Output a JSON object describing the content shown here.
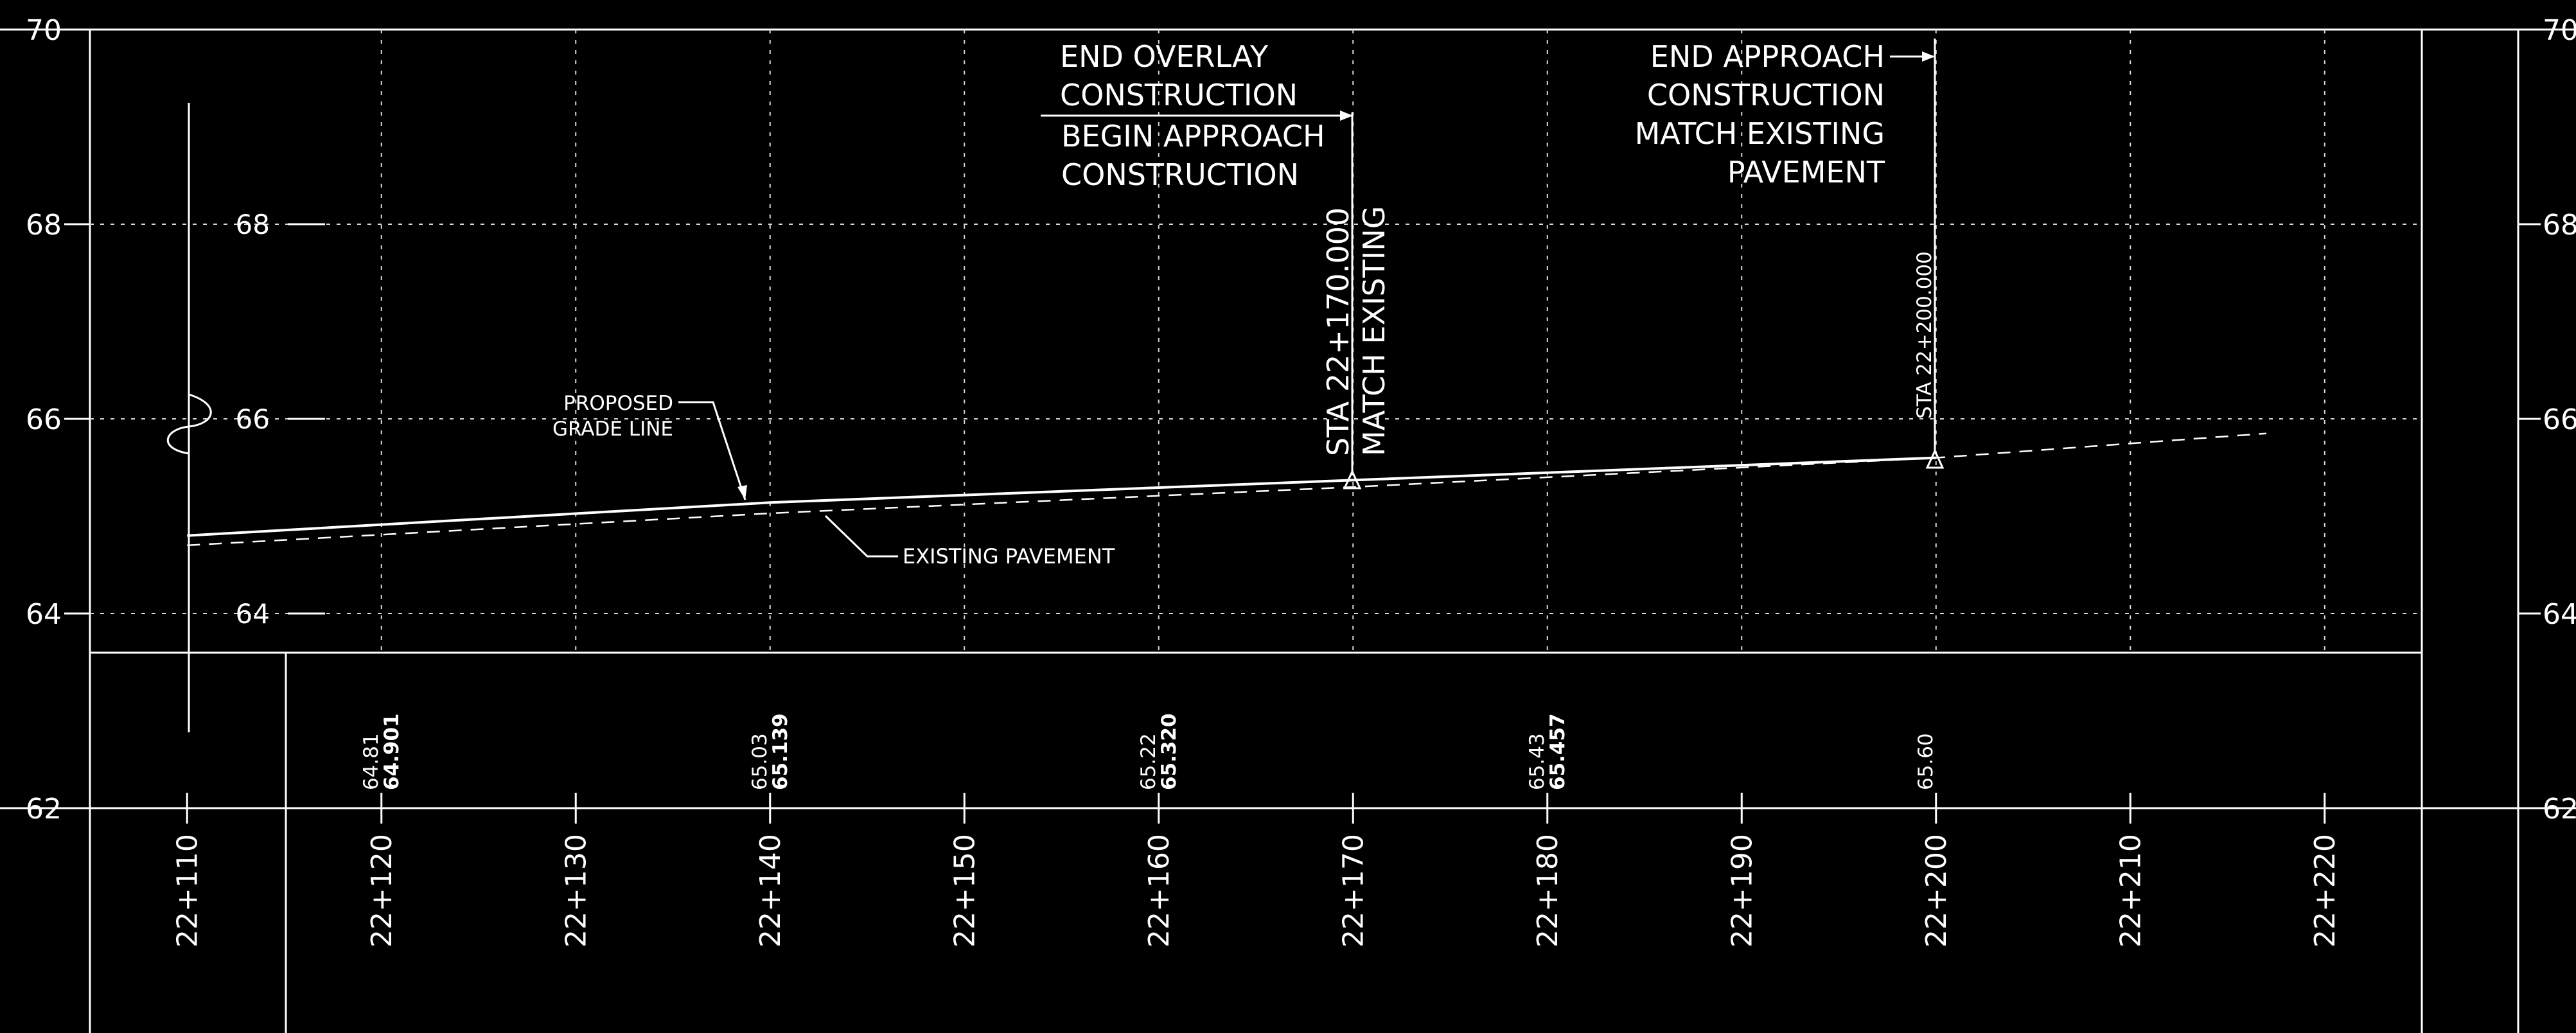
{
  "colors": {
    "background": "#000000",
    "linework": "#ffffff",
    "grid": "#d9d9d9"
  },
  "elevation_scale": {
    "min": 62,
    "max": 70,
    "left_labels": [
      "70",
      "68",
      "66",
      "64",
      "62"
    ],
    "right_labels": [
      "70",
      "68",
      "66",
      "64",
      "62"
    ],
    "inner_labels": [
      "68",
      "66",
      "64"
    ]
  },
  "stations": {
    "min": 22105,
    "max": 22225,
    "ticks": [
      22110,
      22120,
      22130,
      22140,
      22150,
      22160,
      22170,
      22180,
      22190,
      22200,
      22210,
      22220
    ],
    "labels": [
      "22+110",
      "22+120",
      "22+130",
      "22+140",
      "22+150",
      "22+160",
      "22+170",
      "22+180",
      "22+190",
      "22+200",
      "22+210",
      "22+220"
    ]
  },
  "profiles": {
    "proposed": {
      "points": [
        [
          22110,
          64.8
        ],
        [
          22140,
          65.14
        ],
        [
          22170,
          65.37
        ],
        [
          22200,
          65.6
        ]
      ]
    },
    "existing": {
      "points": [
        [
          22110,
          64.7
        ],
        [
          22140,
          65.03
        ],
        [
          22170,
          65.3
        ],
        [
          22200,
          65.6
        ],
        [
          22217,
          65.85
        ]
      ]
    }
  },
  "elevation_values": [
    {
      "station": 22120,
      "existing": "64.81",
      "proposed": "64.901"
    },
    {
      "station": 22140,
      "existing": "65.03",
      "proposed": "65.139"
    },
    {
      "station": 22160,
      "existing": "65.22",
      "proposed": "65.320"
    },
    {
      "station": 22180,
      "existing": "65.43",
      "proposed": "65.457"
    },
    {
      "station": 22200,
      "existing": "65.60",
      "proposed": ""
    }
  ],
  "annotations": {
    "proposed_grade_line": [
      "PROPOSED",
      "GRADE LINE"
    ],
    "existing_pavement": "EXISTING PAVEMENT",
    "end_overlay": [
      "END OVERLAY",
      "CONSTRUCTION"
    ],
    "begin_approach": [
      "BEGIN APPROACH",
      "CONSTRUCTION"
    ],
    "end_approach": [
      "END APPROACH",
      "CONSTRUCTION",
      "MATCH EXISTING",
      "PAVEMENT"
    ],
    "sta_170_line1": "STA 22+170.000",
    "sta_170_line2": "MATCH EXISTING",
    "sta_200": "STA 22+200.000"
  }
}
